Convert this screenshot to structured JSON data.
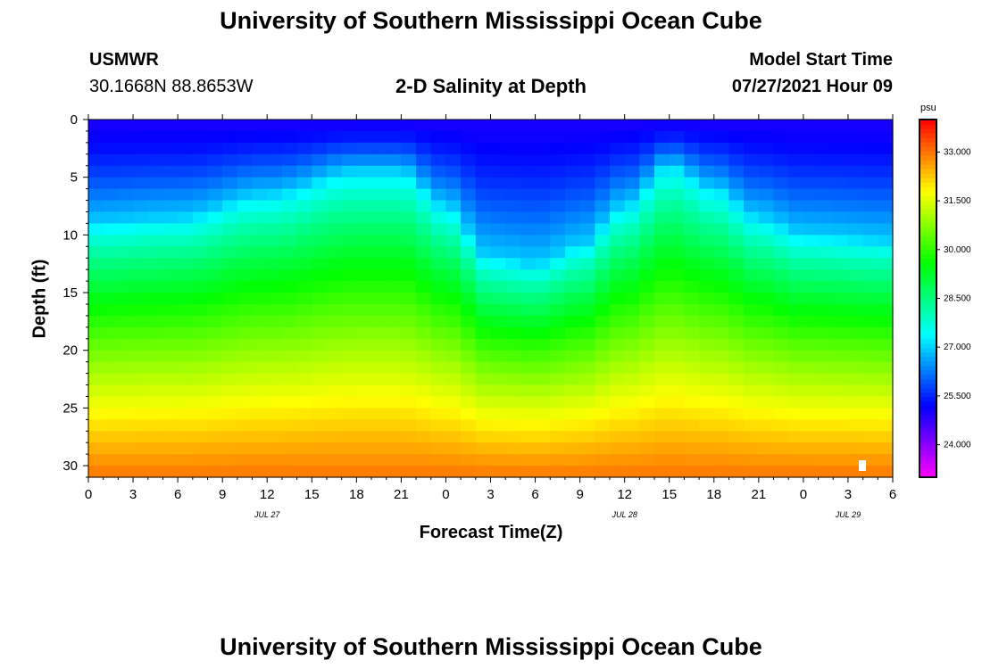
{
  "page": {
    "title_top": "University of Southern Mississippi Ocean Cube",
    "title_bottom": "University of Southern Mississippi Ocean Cube"
  },
  "header": {
    "station_id": "USMWR",
    "location": "30.1668N  88.8653W",
    "plot_title": "2-D Salinity at Depth",
    "start_label": "Model Start Time",
    "start_value": "07/27/2021 Hour 09"
  },
  "chart_data": {
    "type": "heatmap",
    "title": "2-D Salinity at Depth",
    "xlabel": "Forecast Time(Z)",
    "ylabel": "Depth (ft)",
    "x_range_hours": [
      0,
      54
    ],
    "y_range_ft": [
      0,
      31
    ],
    "x_tick_labels": [
      "0",
      "3",
      "6",
      "9",
      "12",
      "15",
      "18",
      "21",
      "0",
      "3",
      "6",
      "9",
      "12",
      "15",
      "18",
      "21",
      "0",
      "3",
      "6"
    ],
    "y_tick_labels": [
      "0",
      "5",
      "10",
      "15",
      "20",
      "25",
      "30"
    ],
    "y_tick_values": [
      0,
      5,
      10,
      15,
      20,
      25,
      30
    ],
    "date_labels": [
      {
        "text": "JUL 27",
        "hour": 12
      },
      {
        "text": "JUL 28",
        "hour": 36
      },
      {
        "text": "JUL 29",
        "hour": 51
      }
    ],
    "colorbar": {
      "unit": "psu",
      "range": [
        23.0,
        34.0
      ],
      "tick_labels": [
        "33.000",
        "31.500",
        "30.000",
        "28.500",
        "27.000",
        "25.500",
        "24.000"
      ],
      "tick_values": [
        33.0,
        31.5,
        30.0,
        28.5,
        27.0,
        25.5,
        24.0
      ]
    },
    "surface_salinity_psu": 25.0,
    "bottom_salinity_psu": 33.0,
    "isohaline_27psu_depth_ft": [
      {
        "hour": 0,
        "depth": 9
      },
      {
        "hour": 6,
        "depth": 8.5
      },
      {
        "hour": 12,
        "depth": 6.5
      },
      {
        "hour": 18,
        "depth": 4.5
      },
      {
        "hour": 21,
        "depth": 4.5
      },
      {
        "hour": 24,
        "depth": 7.5
      },
      {
        "hour": 27,
        "depth": 12
      },
      {
        "hour": 30,
        "depth": 12.5
      },
      {
        "hour": 33,
        "depth": 11
      },
      {
        "hour": 36,
        "depth": 7.5
      },
      {
        "hour": 39,
        "depth": 4
      },
      {
        "hour": 42,
        "depth": 6
      },
      {
        "hour": 45,
        "depth": 8.5
      },
      {
        "hour": 48,
        "depth": 10
      },
      {
        "hour": 54,
        "depth": 10.5
      }
    ]
  }
}
